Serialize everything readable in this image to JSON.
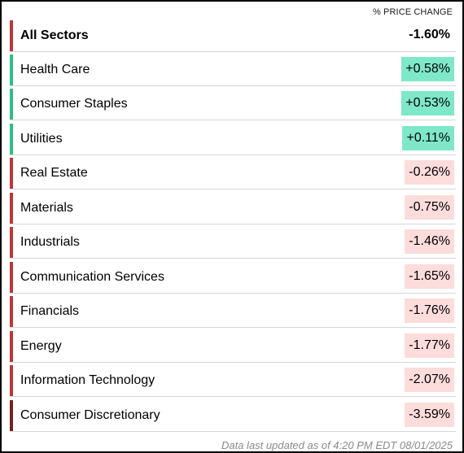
{
  "header": {
    "column_label": "% PRICE CHANGE"
  },
  "colors": {
    "positive_bar": "#2bbf83",
    "negative_bar": "#c03636",
    "dark_negative_bar": "#7a1f1f",
    "positive_bg": "#7ee8c9",
    "negative_bg": "#fddcdc"
  },
  "summary": {
    "label": "All Sectors",
    "value": "-1.60%",
    "trend": "negative"
  },
  "sectors": [
    {
      "label": "Health Care",
      "value": "+0.58%",
      "trend": "positive"
    },
    {
      "label": "Consumer Staples",
      "value": "+0.53%",
      "trend": "positive"
    },
    {
      "label": "Utilities",
      "value": "+0.11%",
      "trend": "positive"
    },
    {
      "label": "Real Estate",
      "value": "-0.26%",
      "trend": "negative"
    },
    {
      "label": "Materials",
      "value": "-0.75%",
      "trend": "negative"
    },
    {
      "label": "Industrials",
      "value": "-1.46%",
      "trend": "negative"
    },
    {
      "label": "Communication Services",
      "value": "-1.65%",
      "trend": "negative"
    },
    {
      "label": "Financials",
      "value": "-1.76%",
      "trend": "negative"
    },
    {
      "label": "Energy",
      "value": "-1.77%",
      "trend": "negative"
    },
    {
      "label": "Information Technology",
      "value": "-2.07%",
      "trend": "negative"
    },
    {
      "label": "Consumer Discretionary",
      "value": "-3.59%",
      "trend": "dark-negative"
    }
  ],
  "footer": {
    "text": "Data last updated as of 4:20 PM EDT 08/01/2025"
  }
}
